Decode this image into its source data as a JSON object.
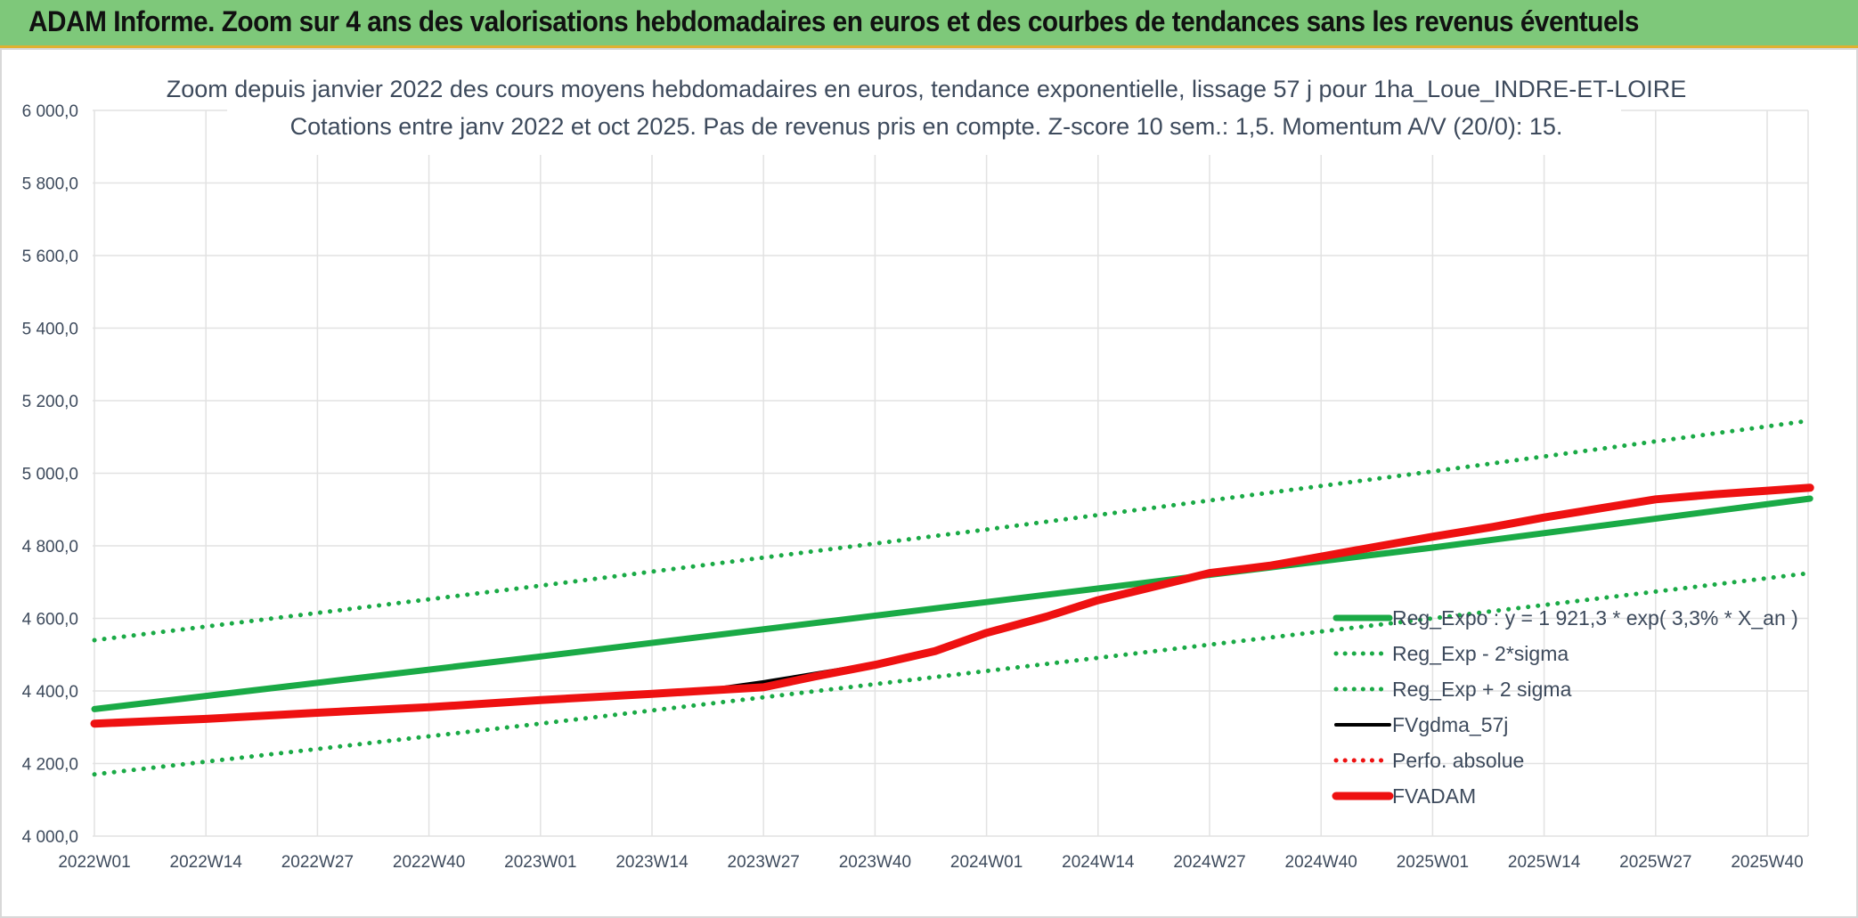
{
  "header": {
    "title": "ADAM Informe. Zoom sur 4 ans des valorisations hebdomadaires en euros et des courbes de tendances sans les revenus éventuels"
  },
  "colors": {
    "banner": "#7ec87a",
    "reg_expo": "#1aaa46",
    "fvgdma": "#000000",
    "fvadam": "#ee1111",
    "perfo": "#ee1111",
    "grid": "#e2e2e2",
    "text": "#3d4a5c"
  },
  "chart_data": {
    "type": "line",
    "title": "Zoom depuis janvier 2022 des cours moyens hebdomadaires en euros, tendance exponentielle, lissage 57 j pour 1ha_Loue_INDRE-ET-LOIRE",
    "subtitle": "Cotations entre janv 2022 et oct 2025. Pas de revenus pris en compte. Z-score 10 sem.: 1,5. Momentum A/V (20/0): 15.",
    "xlabel": "",
    "ylabel": "",
    "ylim": [
      4000,
      6000
    ],
    "yticks": [
      "6 000,0",
      "5 800,0",
      "5 600,0",
      "5 400,0",
      "5 200,0",
      "5 000,0",
      "4 800,0",
      "4 600,0",
      "4 400,0",
      "4 200,0",
      "4 000,0"
    ],
    "x_tick_labels": [
      "2022W01",
      "2022W14",
      "2022W27",
      "2022W40",
      "2023W01",
      "2023W14",
      "2023W27",
      "2023W40",
      "2024W01",
      "2024W14",
      "2024W27",
      "2024W40",
      "2025W01",
      "2025W14",
      "2025W27",
      "2025W40"
    ],
    "x_weeks": [
      0,
      13,
      26,
      39,
      52,
      65,
      78,
      91,
      104,
      117,
      130,
      143,
      156,
      169,
      182,
      195
    ],
    "x_end_week": 200,
    "grid": true,
    "legend_position": "right-inside",
    "series": [
      {
        "name": "Reg_Expo : y = 1 921,3 * exp( 3,3% *  X_an )",
        "style": "solid-thick",
        "color": "#1aaa46",
        "points": [
          [
            0,
            4350
          ],
          [
            52,
            4495
          ],
          [
            104,
            4645
          ],
          [
            156,
            4795
          ],
          [
            200,
            4930
          ]
        ]
      },
      {
        "name": "Reg_Exp - 2*sigma",
        "style": "dotted",
        "color": "#1aaa46",
        "points": [
          [
            0,
            4170
          ],
          [
            52,
            4310
          ],
          [
            104,
            4455
          ],
          [
            156,
            4600
          ],
          [
            200,
            4725
          ]
        ]
      },
      {
        "name": "Reg_Exp + 2 sigma",
        "style": "dotted",
        "color": "#1aaa46",
        "points": [
          [
            0,
            4540
          ],
          [
            52,
            4690
          ],
          [
            104,
            4845
          ],
          [
            156,
            5005
          ],
          [
            200,
            5145
          ]
        ]
      },
      {
        "name": "FVgdma_57j",
        "style": "solid",
        "color": "#000000",
        "points": [
          [
            0,
            4310
          ],
          [
            13,
            4323
          ],
          [
            26,
            4340
          ],
          [
            39,
            4355
          ],
          [
            52,
            4375
          ],
          [
            65,
            4395
          ],
          [
            72,
            4405
          ],
          [
            78,
            4425
          ],
          [
            84,
            4448
          ],
          [
            91,
            4475
          ],
          [
            98,
            4510
          ],
          [
            104,
            4560
          ],
          [
            111,
            4605
          ],
          [
            117,
            4650
          ],
          [
            124,
            4690
          ],
          [
            130,
            4725
          ],
          [
            137,
            4742
          ],
          [
            143,
            4770
          ],
          [
            150,
            4800
          ],
          [
            156,
            4825
          ],
          [
            163,
            4850
          ],
          [
            169,
            4875
          ],
          [
            176,
            4900
          ],
          [
            182,
            4925
          ],
          [
            189,
            4938
          ],
          [
            195,
            4950
          ],
          [
            200,
            4960
          ]
        ]
      },
      {
        "name": "Perfo. absolue",
        "style": "dotted",
        "color": "#ee1111",
        "points": []
      },
      {
        "name": "FVADAM",
        "style": "solid-thick",
        "color": "#ee1111",
        "points": [
          [
            0,
            4310
          ],
          [
            13,
            4323
          ],
          [
            26,
            4340
          ],
          [
            39,
            4355
          ],
          [
            52,
            4375
          ],
          [
            65,
            4392
          ],
          [
            72,
            4402
          ],
          [
            78,
            4410
          ],
          [
            84,
            4440
          ],
          [
            91,
            4472
          ],
          [
            98,
            4510
          ],
          [
            104,
            4560
          ],
          [
            111,
            4605
          ],
          [
            117,
            4650
          ],
          [
            124,
            4690
          ],
          [
            130,
            4725
          ],
          [
            137,
            4745
          ],
          [
            143,
            4770
          ],
          [
            150,
            4800
          ],
          [
            156,
            4825
          ],
          [
            163,
            4852
          ],
          [
            169,
            4878
          ],
          [
            176,
            4905
          ],
          [
            182,
            4928
          ],
          [
            189,
            4942
          ],
          [
            195,
            4952
          ],
          [
            200,
            4960
          ]
        ]
      }
    ]
  }
}
